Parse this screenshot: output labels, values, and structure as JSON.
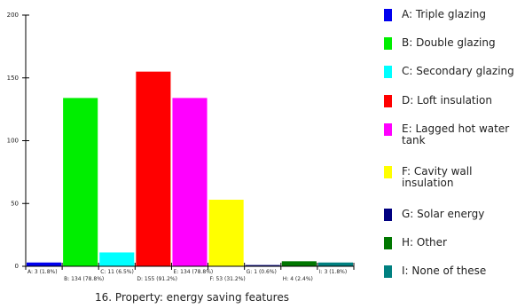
{
  "chart_data": {
    "type": "bar",
    "title": "16. Property: energy saving features",
    "xlabel": "",
    "ylabel": "",
    "ylim": [
      0,
      200
    ],
    "yticks": [
      0,
      50,
      100,
      150,
      200
    ],
    "grid": false,
    "legend_position": "right",
    "categories": [
      "A",
      "B",
      "C",
      "D",
      "E",
      "F",
      "G",
      "H",
      "I"
    ],
    "values": [
      3,
      134,
      11,
      155,
      134,
      53,
      1,
      4,
      3
    ],
    "bar_labels": [
      "A: 3 (1.8%)",
      "B: 134 (78.8%)",
      "C: 11 (6.5%)",
      "D: 155 (91.2%)",
      "E: 134 (78.8%)",
      "F: 53 (31.2%)",
      "G: 1 (0.6%)",
      "H: 4 (2.4%)",
      "I: 3 (1.8%)"
    ],
    "colors": [
      "#0000ee",
      "#00ee00",
      "#00ffff",
      "#ff0000",
      "#ff00ff",
      "#ffff00",
      "#000080",
      "#007700",
      "#008080"
    ],
    "legend": [
      "A:  Triple glazing",
      "B:  Double glazing",
      "C:  Secondary glazing",
      "D:  Loft insulation",
      "E:  Lagged hot water tank",
      "F:  Cavity wall insulation",
      "G:  Solar energy",
      "H:  Other",
      "I:  None of these"
    ]
  }
}
